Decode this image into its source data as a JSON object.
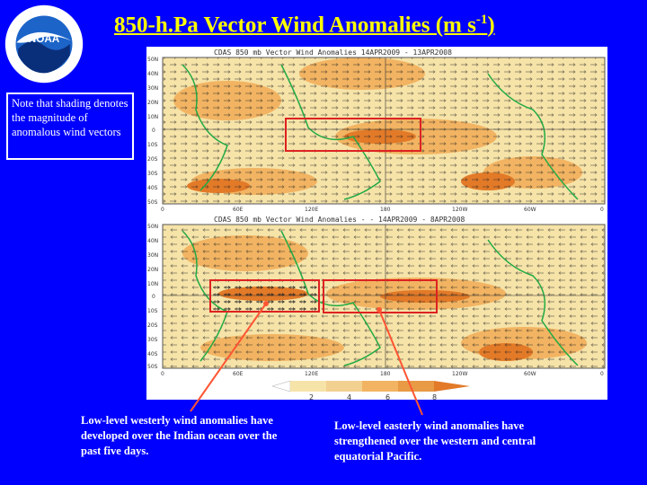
{
  "title_main": "850-h.Pa Vector Wind Anomalies  (m s",
  "title_sup": "-1",
  "title_end": ")",
  "logo_text": "NOAA",
  "logo_ring_text": "NATIONAL OCEANIC AND ATMOSPHERIC ADMINISTRATION · U.S. DEPARTMENT OF COMMERCE",
  "note_text": "Note that shading denotes the magnitude of anomalous wind vectors",
  "maps": {
    "top_title": "CDAS  850  mb  Vector  Wind  Anomalies    14APR2009 - 13APR2008",
    "bottom_title": "CDAS  850  mb  Vector  Wind  Anomalies  -  -  14APR2009 - 8APR2008",
    "lat_labels": [
      "50N",
      "40N",
      "30N",
      "20N",
      "10N",
      "0",
      "10S",
      "20S",
      "30S",
      "40S",
      "50S"
    ],
    "lon_labels": [
      "0",
      "60E",
      "120E",
      "180",
      "120W",
      "60W",
      "0"
    ],
    "colorbar_labels": [
      "2",
      "4",
      "6",
      "8"
    ],
    "colors": {
      "shade_light": "#f6e3a8",
      "shade_mid": "#f2b462",
      "shade_dark": "#e27a28",
      "coast": "#22aa44",
      "box": "#dd2222"
    }
  },
  "caption_left": "Low-level westerly wind anomalies have developed over the Indian ocean over the past five days.",
  "caption_right": "Low-level easterly wind anomalies have strengthened over the western and central equatorial Pacific."
}
